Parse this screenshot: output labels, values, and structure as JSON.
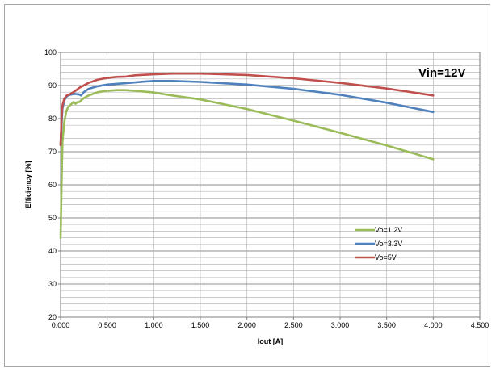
{
  "chart_data": {
    "type": "line",
    "title": "",
    "annotation": "Vin=12V",
    "xlabel": "Iout [A]",
    "ylabel": "Efficiency [%]",
    "xlim": [
      0,
      4.5
    ],
    "ylim": [
      20,
      100
    ],
    "xticks": [
      "0.000",
      "0.500",
      "1.000",
      "1.500",
      "2.000",
      "2.500",
      "3.000",
      "3.500",
      "4.000",
      "4.500"
    ],
    "yticks": [
      "20",
      "30",
      "40",
      "50",
      "60",
      "70",
      "80",
      "90",
      "100"
    ],
    "grid": true,
    "legend_position": "right-center",
    "series": [
      {
        "name": "Vo=1.2V",
        "color": "#9bbb59",
        "points": [
          [
            0.0,
            44
          ],
          [
            0.01,
            60
          ],
          [
            0.02,
            73
          ],
          [
            0.04,
            79
          ],
          [
            0.06,
            82
          ],
          [
            0.08,
            83.5
          ],
          [
            0.1,
            84
          ],
          [
            0.12,
            84.5
          ],
          [
            0.14,
            85
          ],
          [
            0.16,
            84.5
          ],
          [
            0.18,
            85
          ],
          [
            0.2,
            85
          ],
          [
            0.22,
            85.5
          ],
          [
            0.25,
            86.2
          ],
          [
            0.3,
            87
          ],
          [
            0.4,
            88
          ],
          [
            0.5,
            88.4
          ],
          [
            0.6,
            88.6
          ],
          [
            0.7,
            88.6
          ],
          [
            0.8,
            88.4
          ],
          [
            1.0,
            87.9
          ],
          [
            1.2,
            87.0
          ],
          [
            1.5,
            85.8
          ],
          [
            2.0,
            82.9
          ],
          [
            2.5,
            79.4
          ],
          [
            3.0,
            75.7
          ],
          [
            3.5,
            71.9
          ],
          [
            4.0,
            67.7
          ]
        ]
      },
      {
        "name": "Vo=3.3V",
        "color": "#4f81bd",
        "points": [
          [
            0.0,
            72
          ],
          [
            0.01,
            78
          ],
          [
            0.02,
            83
          ],
          [
            0.04,
            85.5
          ],
          [
            0.06,
            86.5
          ],
          [
            0.08,
            87
          ],
          [
            0.1,
            87.2
          ],
          [
            0.15,
            87.5
          ],
          [
            0.2,
            87.3
          ],
          [
            0.22,
            87
          ],
          [
            0.25,
            88
          ],
          [
            0.3,
            89
          ],
          [
            0.4,
            89.8
          ],
          [
            0.5,
            90.3
          ],
          [
            0.7,
            90.7
          ],
          [
            0.9,
            91.2
          ],
          [
            1.0,
            91.4
          ],
          [
            1.2,
            91.4
          ],
          [
            1.5,
            91.1
          ],
          [
            2.0,
            90.3
          ],
          [
            2.5,
            89.0
          ],
          [
            3.0,
            87.2
          ],
          [
            3.5,
            84.8
          ],
          [
            4.0,
            82.0
          ]
        ]
      },
      {
        "name": "Vo=5V",
        "color": "#c0504d",
        "points": [
          [
            0.0,
            72
          ],
          [
            0.01,
            80
          ],
          [
            0.02,
            84
          ],
          [
            0.04,
            86
          ],
          [
            0.06,
            86.8
          ],
          [
            0.08,
            87.2
          ],
          [
            0.1,
            87.4
          ],
          [
            0.15,
            88.2
          ],
          [
            0.2,
            89.3
          ],
          [
            0.3,
            90.8
          ],
          [
            0.4,
            91.8
          ],
          [
            0.5,
            92.3
          ],
          [
            0.6,
            92.6
          ],
          [
            0.7,
            92.7
          ],
          [
            0.8,
            93.1
          ],
          [
            1.0,
            93.4
          ],
          [
            1.2,
            93.6
          ],
          [
            1.5,
            93.6
          ],
          [
            2.0,
            93.2
          ],
          [
            2.5,
            92.2
          ],
          [
            3.0,
            90.8
          ],
          [
            3.5,
            89.1
          ],
          [
            4.0,
            87.0
          ]
        ]
      }
    ]
  }
}
